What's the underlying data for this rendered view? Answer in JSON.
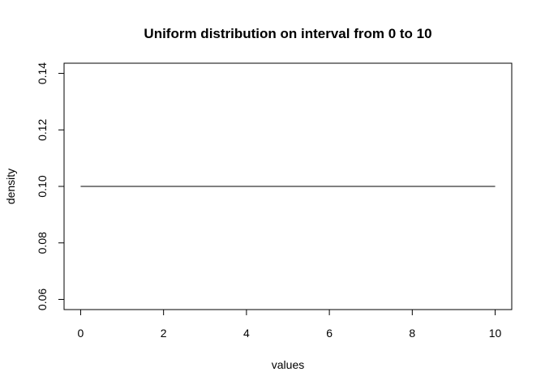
{
  "chart_data": {
    "type": "line",
    "title": "Uniform distribution on interval from  0 to  10",
    "xlabel": "values",
    "ylabel": "density",
    "xlim": [
      -0.4,
      10.4
    ],
    "ylim": [
      0.0564,
      0.1436
    ],
    "x_ticks": [
      0,
      2,
      4,
      6,
      8,
      10
    ],
    "y_ticks": [
      0.06,
      0.08,
      0.1,
      0.12,
      0.14
    ],
    "x_tick_labels": [
      "0",
      "2",
      "4",
      "6",
      "8",
      "10"
    ],
    "y_tick_labels": [
      "0.06",
      "0.08",
      "0.10",
      "0.12",
      "0.14"
    ],
    "series": [
      {
        "name": "density",
        "x": [
          0,
          10
        ],
        "y": [
          0.1,
          0.1
        ],
        "color": "#000000"
      }
    ],
    "grid": false
  }
}
